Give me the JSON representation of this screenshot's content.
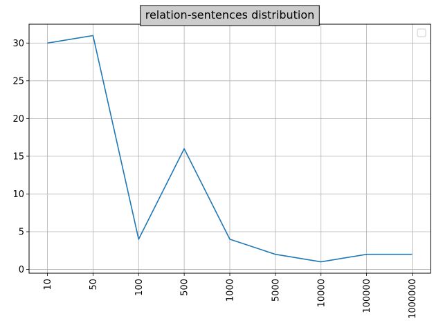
{
  "chart_data": {
    "type": "line",
    "title": "relation-sentences distribution",
    "xlabel": "",
    "ylabel": "",
    "categories": [
      "10",
      "50",
      "100",
      "500",
      "1000",
      "5000",
      "10000",
      "100000",
      "1000000"
    ],
    "series": [
      {
        "values": [
          30,
          31,
          4,
          16,
          4,
          2,
          1,
          2,
          2
        ],
        "color": "#1f77b4"
      }
    ],
    "yticks": [
      0,
      5,
      10,
      15,
      20,
      25,
      30
    ],
    "ylim": [
      -0.5,
      32.5
    ],
    "grid": true,
    "legend": "top-right (empty)",
    "x_tick_rotation": "vertical"
  },
  "colors": {
    "line": "#1f77b4",
    "grid": "#b0b0b0",
    "title_box_fill": "#cccccc",
    "title_box_stroke": "#000000"
  }
}
